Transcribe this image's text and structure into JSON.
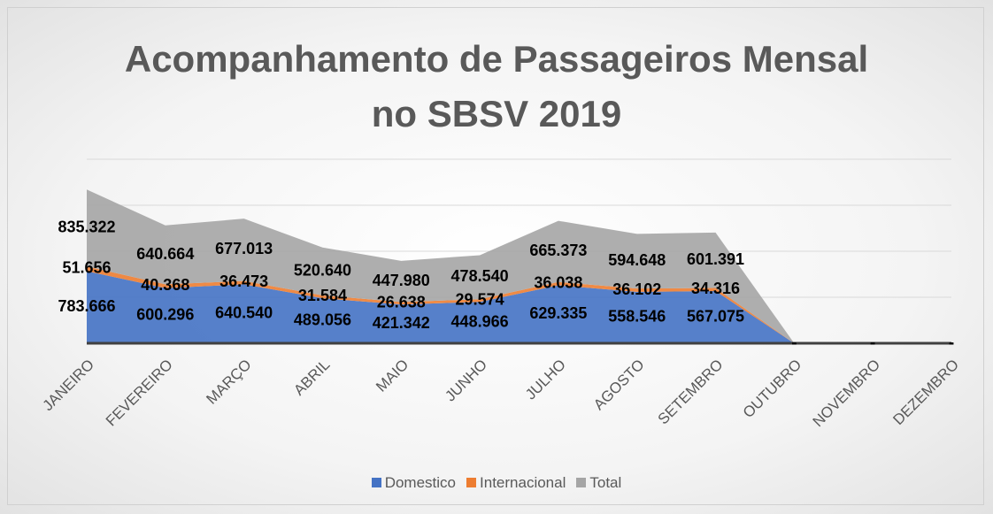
{
  "chart_data": {
    "type": "stacked_area",
    "title": "Acompanhamento de Passageiros Mensal no SBSV 2019",
    "categories": [
      "JANEIRO",
      "FEVEREIRO",
      "MARÇO",
      "ABRIL",
      "MAIO",
      "JUNHO",
      "JULHO",
      "AGOSTO",
      "SETEMBRO",
      "OUTUBRO",
      "NOVEMBRO",
      "DEZEMBRO"
    ],
    "series": [
      {
        "name": "Domestico",
        "color": "#4472c4",
        "values": [
          783666,
          600296,
          640540,
          489056,
          421342,
          448966,
          629335,
          558546,
          567075,
          0,
          0,
          0
        ],
        "value_labels": [
          "783.666",
          "600.296",
          "640.540",
          "489.056",
          "421.342",
          "448.966",
          "629.335",
          "558.546",
          "567.075",
          "-",
          "-",
          "-"
        ]
      },
      {
        "name": "Internacional",
        "color": "#ed7d31",
        "values": [
          51656,
          40368,
          36473,
          31584,
          26638,
          29574,
          36038,
          36102,
          34316,
          0,
          0,
          0
        ],
        "value_labels": [
          "51.656",
          "40.368",
          "36.473",
          "31.584",
          "26.638",
          "29.574",
          "36.038",
          "36.102",
          "34.316",
          "-",
          "-",
          "-"
        ]
      },
      {
        "name": "Total",
        "color": "#a5a5a5",
        "values": [
          835322,
          640664,
          677013,
          520640,
          447980,
          478540,
          665373,
          594648,
          601391,
          0,
          0,
          0
        ],
        "value_labels": [
          "835.322",
          "640.664",
          "677.013",
          "520.640",
          "447.980",
          "478.540",
          "665.373",
          "594.648",
          "601.391",
          "-",
          "-",
          "-"
        ]
      }
    ],
    "ylim": [
      0,
      2000000
    ],
    "yticks": [
      0,
      500000,
      1000000,
      1500000,
      2000000
    ],
    "grid": true
  }
}
